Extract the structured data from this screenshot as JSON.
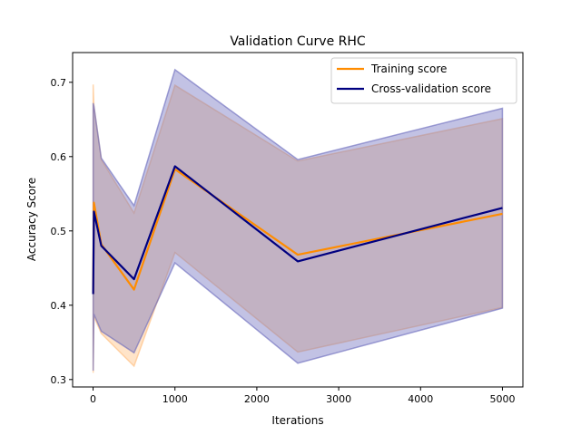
{
  "chart_data": {
    "type": "line",
    "title": "Validation Curve RHC",
    "xlabel": "Iterations",
    "ylabel": "Accuracy Score",
    "xlim": [
      -250,
      5250
    ],
    "ylim": [
      0.29,
      0.74
    ],
    "xticks": [
      0,
      1000,
      2000,
      3000,
      4000,
      5000
    ],
    "yticks": [
      0.3,
      0.4,
      0.5,
      0.6,
      0.7
    ],
    "grid": false,
    "legend_position": "top-right",
    "x": [
      1,
      10,
      100,
      500,
      1000,
      2500,
      5000
    ],
    "series": [
      {
        "name": "Training score",
        "color": "#ff8c00",
        "band_color": "#ffbb78",
        "mean": [
          0.415,
          0.538,
          0.482,
          0.421,
          0.583,
          0.468,
          0.523
        ],
        "lower": [
          0.309,
          0.385,
          0.362,
          0.318,
          0.471,
          0.337,
          0.397
        ],
        "upper": [
          0.697,
          0.668,
          0.596,
          0.524,
          0.696,
          0.594,
          0.651
        ]
      },
      {
        "name": "Cross-validation score",
        "color": "#000080",
        "band_color": "#6666bb",
        "mean": [
          0.415,
          0.526,
          0.48,
          0.435,
          0.587,
          0.459,
          0.531
        ],
        "lower": [
          0.312,
          0.388,
          0.365,
          0.336,
          0.457,
          0.322,
          0.396
        ],
        "upper": [
          0.672,
          0.668,
          0.598,
          0.534,
          0.717,
          0.596,
          0.665
        ]
      }
    ]
  }
}
